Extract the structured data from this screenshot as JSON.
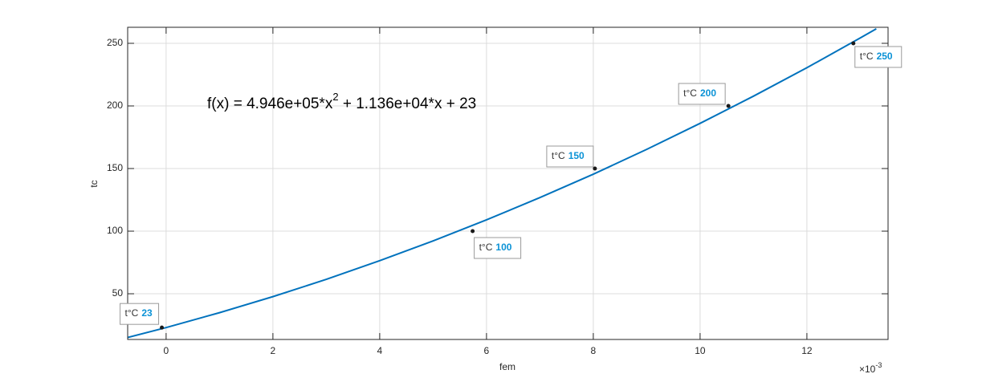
{
  "chart_data": {
    "type": "line",
    "x_label": "fem",
    "y_label": "tc",
    "x_multiplier": {
      "base": "×10",
      "exponent": "-3"
    },
    "annotation": {
      "parts": [
        "f(x) = 4.946e+05*x",
        "2",
        " + 1.136e+04*x + 23"
      ]
    },
    "xlim": [
      -0.72,
      13.52
    ],
    "ylim": [
      13.5,
      262.8
    ],
    "xticks": [
      0,
      2,
      4,
      6,
      8,
      10,
      12
    ],
    "yticks": [
      50,
      100,
      150,
      200,
      250
    ],
    "grid": true,
    "series": [
      {
        "color": "#0072bd",
        "x": [
          -0.72,
          0,
          1,
          2,
          3,
          4,
          5,
          6,
          7,
          8,
          9,
          10,
          11,
          12,
          13,
          13.3
        ],
        "values": [
          15.1,
          23,
          34.9,
          47.7,
          61.5,
          76.4,
          92.2,
          109,
          126.8,
          145.5,
          165.3,
          186.1,
          207.8,
          230.5,
          254.3,
          261.6
        ]
      }
    ],
    "points": {
      "color": "#1a1a1a",
      "tip_label": "t°C",
      "x": [
        -0.08,
        5.74,
        8.03,
        10.53,
        12.87
      ],
      "values": [
        23,
        100,
        150,
        200,
        250
      ]
    }
  }
}
